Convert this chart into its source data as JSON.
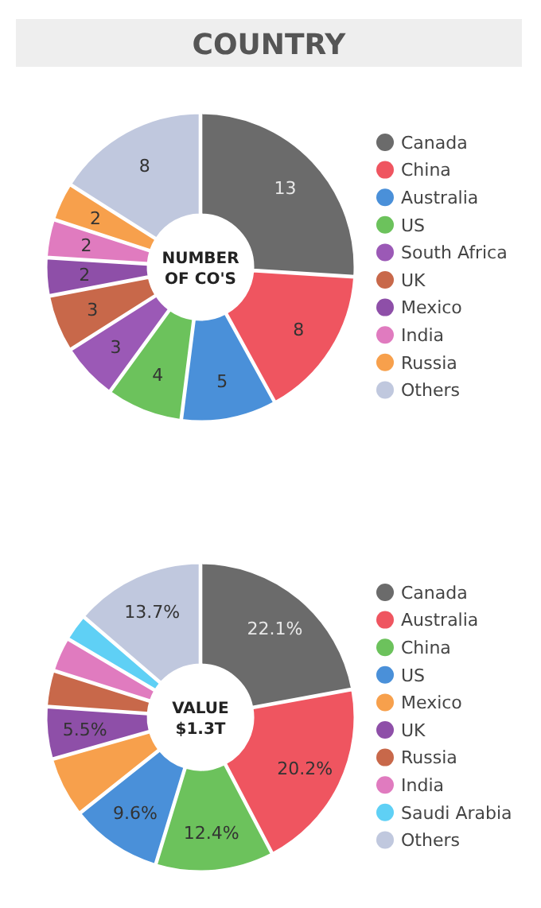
{
  "chart_data": [
    {
      "type": "donut",
      "title": "COUNTRY",
      "categories": [
        "Canada",
        "China",
        "Australia",
        "US",
        "South Africa",
        "UK",
        "Mexico",
        "India",
        "Russia",
        "Others"
      ],
      "values": [
        13,
        8,
        5,
        4,
        3,
        3,
        2,
        2,
        2,
        8
      ],
      "colors": [
        "#6b6b6b",
        "#ef5560",
        "#4a90d9",
        "#6cc25c",
        "#9b59b6",
        "#c8684a",
        "#8e4fa8",
        "#e07bbf",
        "#f7a04c",
        "#c0c8de"
      ],
      "data_labels": true,
      "legend": "right",
      "annotations": [
        "NUMBER OF CO'S"
      ]
    },
    {
      "type": "donut",
      "categories": [
        "Canada",
        "Australia",
        "China",
        "US",
        "Mexico",
        "UK",
        "Russia",
        "India",
        "Saudi Arabia",
        "Others"
      ],
      "values": [
        22.1,
        20.2,
        12.4,
        9.6,
        6.3,
        5.5,
        3.8,
        3.6,
        2.8,
        13.7
      ],
      "colors": [
        "#6b6b6b",
        "#ef5560",
        "#6cc25c",
        "#4a90d9",
        "#f7a04c",
        "#8e4fa8",
        "#c8684a",
        "#e07bbf",
        "#5fd0f5",
        "#c0c8de"
      ],
      "value_labels": [
        "22.1%",
        "20.2%",
        "12.4%",
        "9.6%",
        null,
        "5.5%",
        null,
        null,
        null,
        "13.7%"
      ],
      "legend": "right",
      "annotations": [
        "VALUE $1.3T"
      ]
    }
  ]
}
